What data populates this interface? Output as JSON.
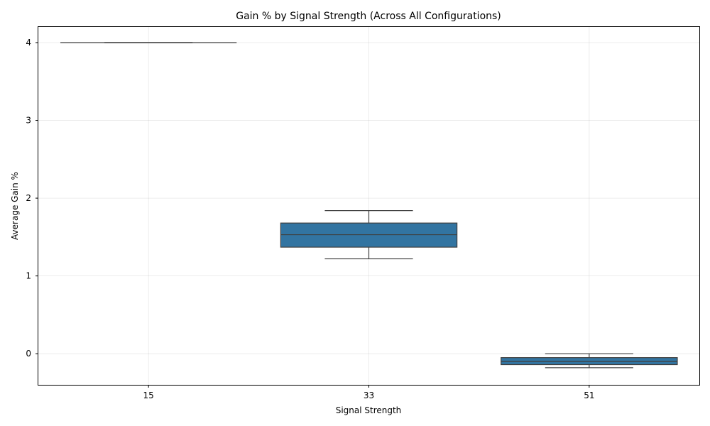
{
  "chart_data": {
    "type": "box",
    "title": "Gain % by Signal Strength (Across All Configurations)",
    "xlabel": "Signal Strength",
    "ylabel": "Average Gain %",
    "categories": [
      "15",
      "33",
      "51"
    ],
    "boxes": [
      {
        "category": "15",
        "whisker_low": 4.0,
        "q1": 4.0,
        "median": 4.0,
        "q3": 4.0,
        "whisker_high": 4.0
      },
      {
        "category": "33",
        "whisker_low": 1.22,
        "q1": 1.37,
        "median": 1.53,
        "q3": 1.68,
        "whisker_high": 1.84
      },
      {
        "category": "51",
        "whisker_low": -0.18,
        "q1": -0.14,
        "median": -0.1,
        "q3": -0.05,
        "whisker_high": 0.0
      }
    ],
    "ylim": [
      -0.4,
      4.21
    ],
    "yticks": [
      0,
      1,
      2,
      3,
      4
    ],
    "grid": true,
    "box_color": "#3274a1",
    "line_color": "#3f3f3f"
  }
}
